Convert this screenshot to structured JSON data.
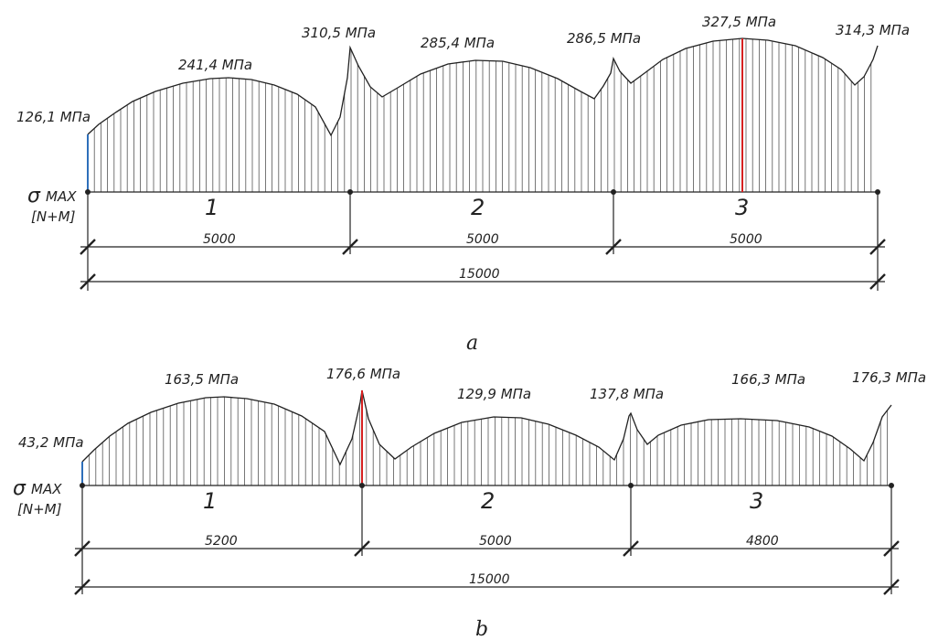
{
  "axis_label_symbol": "σ",
  "axis_label_max": "MAX",
  "axis_label_sub": "[N+M]",
  "diagrams": [
    {
      "caption": "a",
      "spans": [
        {
          "number": "1",
          "length": "5000"
        },
        {
          "number": "2",
          "length": "5000"
        },
        {
          "number": "3",
          "length": "5000"
        }
      ],
      "total_length": "15000",
      "labels": [
        "126,1 МПа",
        "241,4 МПа",
        "310,5 МПа",
        "285,4 МПа",
        "286,5 МПа",
        "327,5 МПа",
        "314,3 МПа"
      ],
      "values_mpa": [
        126.1,
        241.4,
        310.5,
        285.4,
        286.5,
        327.5,
        314.3
      ]
    },
    {
      "caption": "b",
      "spans": [
        {
          "number": "1",
          "length": "5200"
        },
        {
          "number": "2",
          "length": "5000"
        },
        {
          "number": "3",
          "length": "4800"
        }
      ],
      "total_length": "15000",
      "labels": [
        "43,2 МПа",
        "163,5 МПа",
        "176,6 МПа",
        "129,9 МПа",
        "137,8 МПа",
        "166,3 МПа",
        "176,3 МПа"
      ],
      "values_mpa": [
        43.2,
        163.5,
        176.6,
        129.9,
        137.8,
        166.3,
        176.3
      ]
    }
  ],
  "colors": {
    "line": "#222222",
    "hatch": "#555555",
    "min_marker": "#2e6fba",
    "max_marker": "#d62020"
  }
}
